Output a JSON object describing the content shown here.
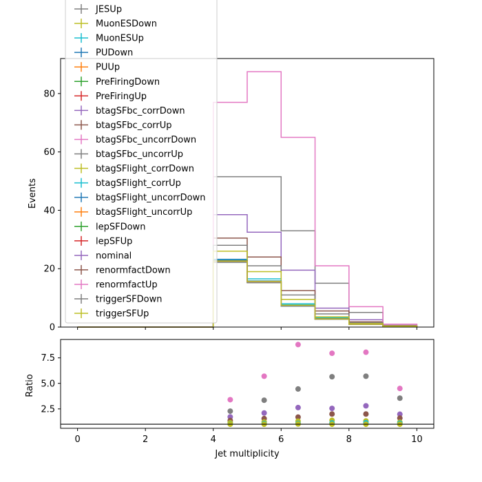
{
  "chart_data": [
    {
      "type": "line",
      "panel": "main",
      "xlabel": "",
      "ylabel": "Events",
      "xlim": [
        -0.5,
        10.5
      ],
      "ylim": [
        0,
        92
      ],
      "yticks": [
        "0",
        "20",
        "40",
        "60",
        "80"
      ],
      "ytick_values": [
        0,
        20,
        40,
        60,
        80
      ],
      "xticks_shown": false,
      "grid": false,
      "legend_location": "upper-left",
      "bin_edges": [
        4,
        5,
        6,
        7,
        8,
        9,
        10
      ],
      "series": [
        {
          "name": "JESUp",
          "color": "#7f7f7f",
          "values": [
            51.5,
            51.5,
            33,
            15,
            5,
            1
          ]
        },
        {
          "name": "MuonESDown",
          "color": "#bcbd22",
          "values": [
            22.5,
            15.5,
            7.5,
            3,
            1,
            0.3
          ]
        },
        {
          "name": "MuonESUp",
          "color": "#17becf",
          "values": [
            23,
            16.5,
            8,
            3.2,
            1.1,
            0.35
          ]
        },
        {
          "name": "PUDown",
          "color": "#1f77b4",
          "values": [
            23.2,
            15.5,
            7.4,
            2.8,
            0.9,
            0.3
          ]
        },
        {
          "name": "PUUp",
          "color": "#ff7f0e",
          "values": [
            22.3,
            15.4,
            7.3,
            2.7,
            0.9,
            0.3
          ]
        },
        {
          "name": "PreFiringDown",
          "color": "#2ca02c",
          "values": [
            22.2,
            15.3,
            7.2,
            2.7,
            0.9,
            0.3
          ]
        },
        {
          "name": "PreFiringUp",
          "color": "#d62728",
          "values": [
            22.4,
            15.6,
            7.4,
            2.8,
            0.9,
            0.3
          ]
        },
        {
          "name": "btagSFbc_corrDown",
          "color": "#9467bd",
          "values": [
            38.5,
            32.5,
            19.5,
            6.5,
            2.5,
            0.6
          ]
        },
        {
          "name": "btagSFbc_corrUp",
          "color": "#8c564b",
          "values": [
            30.5,
            24,
            12.5,
            5.5,
            1.8,
            0.5
          ]
        },
        {
          "name": "btagSFbc_uncorrDown",
          "color": "#e377c2",
          "values": [
            77,
            87.5,
            65,
            21,
            7,
            1
          ]
        },
        {
          "name": "btagSFbc_uncorrUp",
          "color": "#7f7f7f",
          "values": [
            28,
            21,
            11,
            4.5,
            1.5,
            0.4
          ]
        },
        {
          "name": "btagSFlight_corrDown",
          "color": "#bcbd22",
          "values": [
            26,
            19,
            9.5,
            3.5,
            1.2,
            0.35
          ]
        },
        {
          "name": "btagSFlight_corrUp",
          "color": "#17becf",
          "values": [
            22.8,
            15.8,
            7.6,
            2.9,
            1,
            0.3
          ]
        },
        {
          "name": "btagSFlight_uncorrDown",
          "color": "#1f77b4",
          "values": [
            22.6,
            15.6,
            7.5,
            2.8,
            0.95,
            0.3
          ]
        },
        {
          "name": "btagSFlight_uncorrUp",
          "color": "#ff7f0e",
          "values": [
            22.5,
            15.5,
            7.4,
            2.8,
            0.95,
            0.3
          ]
        },
        {
          "name": "lepSFDown",
          "color": "#2ca02c",
          "values": [
            22.4,
            15.4,
            7.3,
            2.7,
            0.9,
            0.3
          ]
        },
        {
          "name": "lepSFUp",
          "color": "#d62728",
          "values": [
            22.6,
            15.6,
            7.5,
            2.8,
            0.95,
            0.3
          ]
        },
        {
          "name": "nominal",
          "color": "#9467bd",
          "values": [
            22.5,
            15.5,
            7.4,
            2.8,
            0.9,
            0.3
          ]
        },
        {
          "name": "renormfactDown",
          "color": "#8c564b",
          "values": [
            22.7,
            15.7,
            7.5,
            2.9,
            1,
            0.3
          ]
        },
        {
          "name": "renormfactUp",
          "color": "#e377c2",
          "values": [
            22.3,
            15.3,
            7.3,
            2.7,
            0.9,
            0.3
          ]
        },
        {
          "name": "triggerSFDown",
          "color": "#7f7f7f",
          "values": [
            22.2,
            15.2,
            7.2,
            2.7,
            0.9,
            0.3
          ]
        },
        {
          "name": "triggerSFUp",
          "color": "#bcbd22",
          "values": [
            22.6,
            15.6,
            7.5,
            2.8,
            0.95,
            0.3
          ]
        }
      ]
    },
    {
      "type": "scatter",
      "panel": "ratio",
      "xlabel": "Jet multiplicity",
      "ylabel": "Ratio",
      "xlim": [
        -0.5,
        10.5
      ],
      "ylim": [
        0.6,
        9.3
      ],
      "xticks": [
        "0",
        "2",
        "4",
        "6",
        "8",
        "10"
      ],
      "xtick_values": [
        0,
        2,
        4,
        6,
        8,
        10
      ],
      "yticks": [
        "2.5",
        "5.0",
        "7.5"
      ],
      "ytick_values": [
        2.5,
        5.0,
        7.5
      ],
      "reference_line": 1,
      "grid": false,
      "x": [
        4.5,
        5.5,
        6.5,
        7.5,
        8.5,
        9.5
      ],
      "series": [
        {
          "color": "#e377c2",
          "values": [
            3.4,
            5.7,
            8.8,
            7.95,
            8.05,
            4.5
          ]
        },
        {
          "color": "#7f7f7f",
          "values": [
            2.28,
            3.35,
            4.45,
            5.65,
            5.7,
            3.55
          ]
        },
        {
          "color": "#9467bd",
          "values": [
            1.72,
            2.1,
            2.63,
            2.55,
            2.8,
            1.98
          ]
        },
        {
          "color": "#8c564b",
          "values": [
            1.36,
            1.55,
            1.7,
            2.0,
            2.0,
            1.6
          ]
        },
        {
          "color": "#bcbd22",
          "values": [
            1.15,
            1.22,
            1.3,
            1.38,
            1.32,
            1.2
          ]
        },
        {
          "color": "#17becf",
          "values": [
            1.02,
            1.06,
            1.08,
            1.12,
            1.15,
            1.1
          ]
        },
        {
          "color": "#bcbd22",
          "values": [
            1.0,
            1.0,
            1.02,
            1.0,
            1.0,
            1.0
          ]
        }
      ]
    }
  ]
}
